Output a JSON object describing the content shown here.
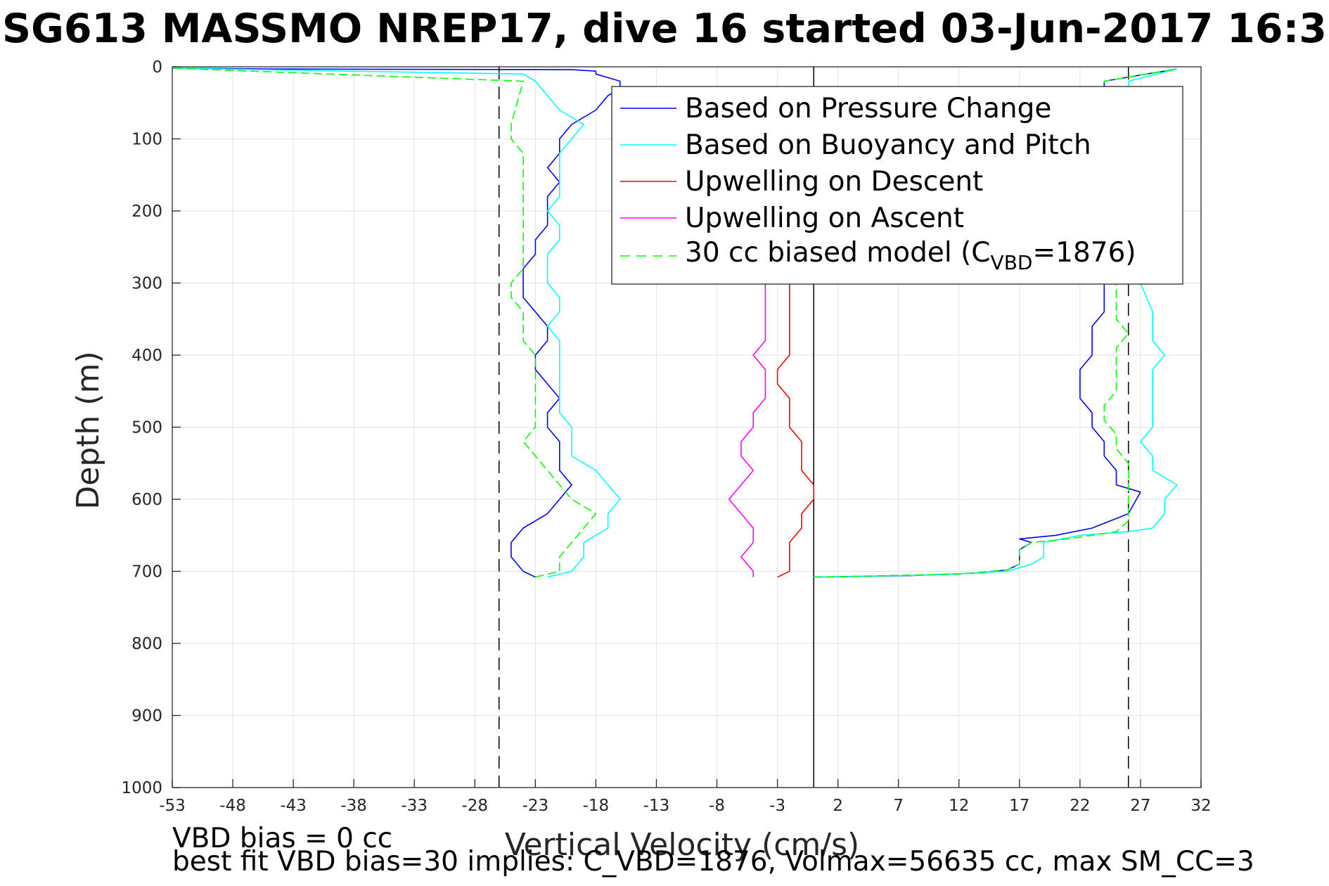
{
  "chart_data": {
    "type": "line",
    "title": "SG613 MASSMO NREP17, dive 16 started 03-Jun-2017 16:3",
    "xlabel": "Vertical Velocity (cm/s)",
    "ylabel": "Depth (m)",
    "xlim": [
      -53,
      32
    ],
    "ylim": [
      0,
      1000
    ],
    "y_reversed": true,
    "grid": true,
    "legend_location": "top-right",
    "xticks": [
      -53,
      -48,
      -43,
      -38,
      -33,
      -28,
      -23,
      -18,
      -13,
      -8,
      -3,
      2,
      7,
      12,
      17,
      22,
      27,
      32
    ],
    "yticks": [
      0,
      100,
      200,
      300,
      400,
      500,
      600,
      700,
      800,
      900,
      1000
    ],
    "reference_lines": [
      {
        "x": -26,
        "style": "dashed",
        "color": "#000000"
      },
      {
        "x": 0,
        "style": "solid",
        "color": "#000000"
      },
      {
        "x": 26,
        "style": "dashed",
        "color": "#000000"
      }
    ],
    "series": [
      {
        "name": "Based on Pressure Change",
        "color": "#0000ff",
        "style": "solid",
        "x": [
          -23,
          -24,
          -25,
          -25,
          -24,
          -22,
          -21,
          -20,
          -21,
          -21,
          -21,
          -22,
          -22,
          -21,
          -22,
          -23,
          -23,
          -22,
          -22,
          -23,
          -24,
          -24,
          -24,
          -23,
          -23,
          -22,
          -22,
          -22,
          -21,
          -22,
          -21,
          -21,
          -20,
          -18,
          -17,
          -16,
          -16,
          -17,
          -18,
          -18,
          -18,
          -20,
          -45,
          -53
        ],
        "y": [
          708,
          700,
          680,
          660,
          640,
          620,
          600,
          580,
          560,
          540,
          520,
          500,
          480,
          460,
          440,
          420,
          400,
          380,
          360,
          340,
          320,
          300,
          280,
          260,
          240,
          220,
          200,
          180,
          160,
          140,
          120,
          100,
          80,
          60,
          40,
          30,
          20,
          15,
          10,
          8,
          6,
          4,
          3,
          2
        ]
      },
      {
        "name": "Based on Buoyancy and Pitch",
        "color": "#00ffff",
        "style": "solid",
        "x": [
          -22,
          -20,
          -19,
          -19,
          -17,
          -17,
          -16,
          -17,
          -18,
          -20,
          -20,
          -20,
          -21,
          -21,
          -21,
          -21,
          -21,
          -21,
          -22,
          -21,
          -21,
          -22,
          -22,
          -22,
          -21,
          -21,
          -22,
          -21,
          -21,
          -21,
          -21,
          -20,
          -19,
          -21,
          -22,
          -23,
          -24,
          -53
        ],
        "y": [
          708,
          700,
          680,
          660,
          640,
          620,
          600,
          580,
          560,
          540,
          520,
          500,
          480,
          460,
          440,
          420,
          400,
          380,
          360,
          340,
          320,
          300,
          280,
          260,
          240,
          220,
          200,
          180,
          160,
          140,
          120,
          100,
          80,
          60,
          40,
          20,
          10,
          2
        ]
      },
      {
        "name": "Upwelling on Descent",
        "color": "#ff0000",
        "style": "solid",
        "x": [
          -3,
          -2,
          -2,
          -2,
          -1,
          -1,
          0,
          0,
          -1,
          -1,
          -1,
          -2,
          -2,
          -2,
          -3,
          -3,
          -2,
          -2,
          -2,
          -2
        ],
        "y": [
          708,
          700,
          680,
          660,
          640,
          620,
          600,
          580,
          560,
          540,
          520,
          500,
          480,
          460,
          440,
          420,
          400,
          380,
          360,
          300
        ]
      },
      {
        "name": "Upwelling on Ascent",
        "color": "#ff00ff",
        "style": "solid",
        "x": [
          -5,
          -5,
          -6,
          -5,
          -5,
          -6,
          -7,
          -6,
          -5,
          -6,
          -6,
          -5,
          -5,
          -4,
          -4,
          -4,
          -5,
          -4,
          -4,
          -4
        ],
        "y": [
          708,
          700,
          680,
          660,
          640,
          620,
          600,
          580,
          560,
          540,
          520,
          500,
          480,
          460,
          440,
          420,
          400,
          380,
          360,
          300
        ]
      },
      {
        "name": "30 cc biased model (C_VBD=1876)",
        "color": "#00ff00",
        "style": "dashed",
        "x": [
          -23,
          -21,
          -21,
          -20,
          -19,
          -18,
          -20,
          -21,
          -22,
          -23,
          -24,
          -23,
          -23,
          -23,
          -23,
          -23,
          -23,
          -24,
          -24,
          -24,
          -25,
          -25,
          -24,
          -24,
          -24,
          -24,
          -24,
          -24,
          -24,
          -24,
          -24,
          -25,
          -25,
          -24,
          -53
        ],
        "y": [
          708,
          700,
          680,
          660,
          640,
          620,
          600,
          580,
          560,
          540,
          520,
          500,
          480,
          460,
          440,
          420,
          400,
          380,
          360,
          340,
          320,
          300,
          280,
          260,
          240,
          220,
          200,
          180,
          160,
          140,
          120,
          100,
          80,
          20,
          2
        ]
      },
      {
        "name": "",
        "color": "#0000ff",
        "style": "solid",
        "x": [
          0,
          8,
          14,
          16,
          17,
          17,
          18,
          17,
          20,
          23,
          26,
          27,
          25,
          25,
          24,
          24,
          23,
          23,
          22,
          22,
          22,
          23,
          23,
          23,
          24,
          24,
          24,
          30
        ],
        "y": [
          708,
          706,
          702,
          698,
          690,
          670,
          660,
          655,
          650,
          640,
          620,
          590,
          580,
          560,
          540,
          520,
          500,
          480,
          460,
          440,
          420,
          400,
          380,
          360,
          340,
          300,
          20,
          3
        ]
      },
      {
        "name": "",
        "color": "#00ffff",
        "style": "solid",
        "x": [
          0,
          10,
          16,
          18,
          19,
          19,
          19,
          22,
          26,
          28,
          29,
          29,
          30,
          28,
          28,
          27,
          28,
          28,
          28,
          28,
          28,
          29,
          28,
          28,
          28,
          27,
          26,
          30
        ],
        "y": [
          708,
          705,
          700,
          690,
          680,
          670,
          660,
          650,
          645,
          640,
          620,
          600,
          580,
          560,
          540,
          520,
          500,
          480,
          460,
          440,
          420,
          400,
          380,
          360,
          340,
          300,
          20,
          3
        ]
      },
      {
        "name": "",
        "color": "#00ff00",
        "style": "dashed",
        "x": [
          0,
          12,
          16,
          17,
          17,
          18,
          21,
          25,
          26,
          26,
          26,
          26,
          26,
          25,
          25,
          24,
          24,
          25,
          25,
          25,
          25,
          26,
          25,
          25,
          25,
          25,
          24,
          30
        ],
        "y": [
          708,
          704,
          698,
          690,
          670,
          660,
          655,
          645,
          630,
          610,
          590,
          570,
          550,
          530,
          510,
          490,
          470,
          450,
          430,
          410,
          390,
          370,
          350,
          330,
          310,
          300,
          20,
          3
        ]
      }
    ]
  },
  "annotations": {
    "line1": "VBD bias = 0 cc",
    "line2": "best fit VBD bias=30 implies: C_VBD=1876, Volmax=56635 cc, max SM_CC=3"
  },
  "legend": {
    "entries": [
      {
        "label": "Based on Pressure Change",
        "color": "#0000ff",
        "style": "solid"
      },
      {
        "label": "Based on Buoyancy and Pitch",
        "color": "#00ffff",
        "style": "solid"
      },
      {
        "label": "Upwelling on Descent",
        "color": "#ff0000",
        "style": "solid"
      },
      {
        "label": "Upwelling on Ascent",
        "color": "#ff00ff",
        "style": "solid"
      }
    ],
    "model_entry": {
      "prefix": "30 cc biased model (C",
      "subscript": "VBD",
      "suffix": "=1876)",
      "color": "#00ff00",
      "style": "dashed"
    }
  }
}
